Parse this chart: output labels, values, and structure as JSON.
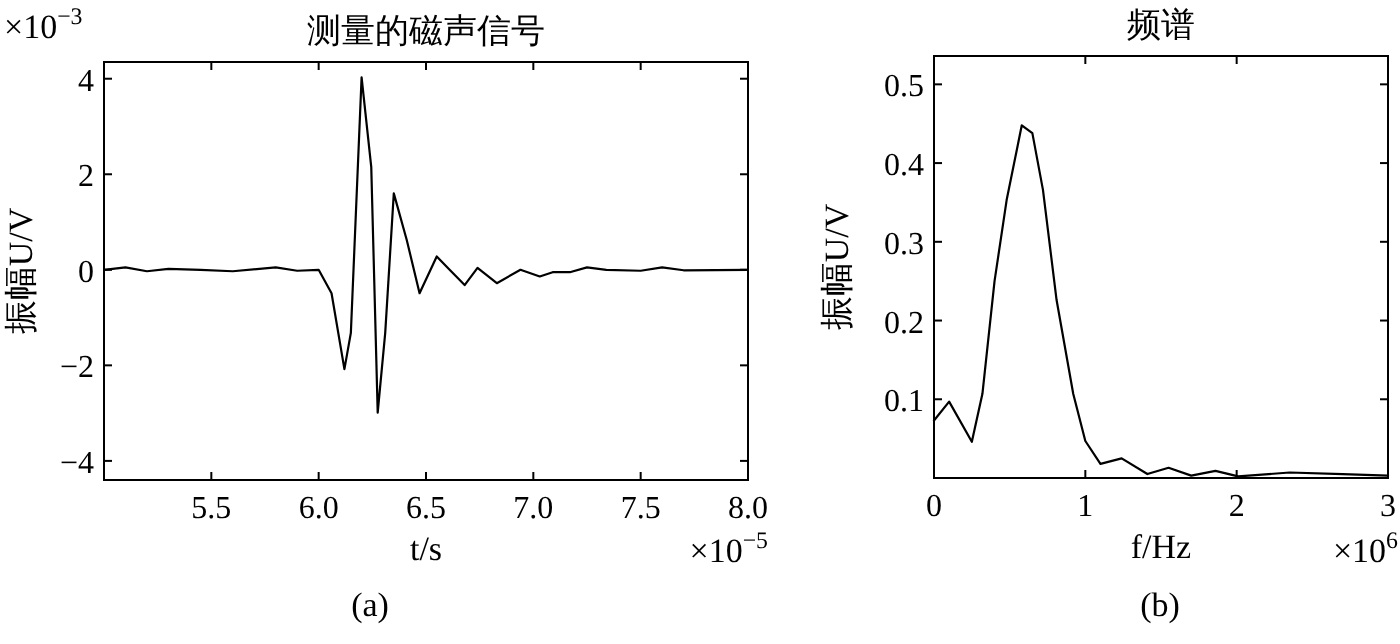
{
  "chart_data": [
    {
      "type": "line",
      "title": "测量的磁声信号",
      "xlabel": "t/s",
      "ylabel": "振幅U/V",
      "xlim": [
        5.0,
        8.0
      ],
      "xticks": [
        {
          "value": 5.5,
          "label": "5.5"
        },
        {
          "value": 6.0,
          "label": "6.0"
        },
        {
          "value": 6.5,
          "label": "6.5"
        },
        {
          "value": 7.0,
          "label": "7.0"
        },
        {
          "value": 7.5,
          "label": "7.5"
        },
        {
          "value": 8.0,
          "label": "8.0"
        }
      ],
      "ylim": [
        -4.4,
        4.35
      ],
      "yticks": [
        -4,
        -2,
        0,
        2,
        4
      ],
      "annotations": [
        "×10$^{−3}$",
        "×10$^{−5}$",
        "(a)"
      ],
      "series": [
        {
          "color": "#000000",
          "x": [
            5.0,
            5.1,
            5.2,
            5.3,
            5.45,
            5.6,
            5.8,
            5.9,
            6.0,
            6.06,
            6.12,
            6.15,
            6.2,
            6.245,
            6.275,
            6.31,
            6.35,
            6.41,
            6.47,
            6.55,
            6.61,
            6.68,
            6.74,
            6.83,
            6.94,
            7.03,
            7.09,
            7.17,
            7.25,
            7.34,
            7.5,
            7.6,
            7.7,
            8.0
          ],
          "values": [
            0,
            0.05,
            -0.03,
            0.02,
            0,
            -0.03,
            0.05,
            -0.02,
            0,
            -0.49,
            -2.08,
            -1.32,
            4.03,
            2.15,
            -2.99,
            -1.32,
            1.6,
            0.63,
            -0.49,
            0.28,
            0,
            -0.32,
            0.04,
            -0.28,
            0,
            -0.14,
            -0.05,
            -0.05,
            0.05,
            0,
            -0.02,
            0.05,
            -0.01,
            0
          ]
        }
      ]
    },
    {
      "type": "line",
      "title": "频谱",
      "xlabel": "f/Hz",
      "ylabel": "振幅U/V",
      "xlim": [
        0,
        3
      ],
      "xticks": [
        0,
        1,
        2,
        3
      ],
      "ylim": [
        0,
        0.536
      ],
      "yticks": [
        0.1,
        0.2,
        0.3,
        0.4,
        0.5
      ],
      "annotations": [
        "×10$^{6}$",
        "(b)"
      ],
      "series": [
        {
          "color": "#000000",
          "x": [
            0,
            0.1,
            0.25,
            0.32,
            0.4,
            0.48,
            0.58,
            0.65,
            0.72,
            0.81,
            0.92,
            1.0,
            1.1,
            1.24,
            1.41,
            1.55,
            1.7,
            1.86,
            2.01,
            2.35,
            2.7,
            3.0
          ],
          "values": [
            0.073,
            0.097,
            0.046,
            0.107,
            0.25,
            0.353,
            0.448,
            0.438,
            0.366,
            0.226,
            0.107,
            0.047,
            0.018,
            0.025,
            0.005,
            0.013,
            0.003,
            0.009,
            0.002,
            0.007,
            0.005,
            0.003
          ]
        }
      ]
    }
  ]
}
